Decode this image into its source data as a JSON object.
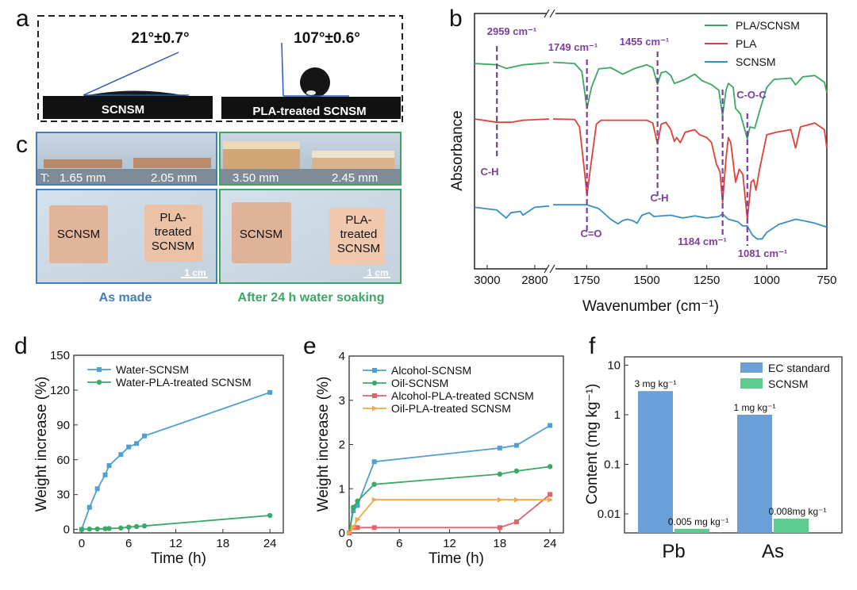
{
  "panel_labels": {
    "a": "a",
    "b": "b",
    "c": "c",
    "d": "d",
    "e": "e",
    "f": "f"
  },
  "panel_a": {
    "left_angle": "21°±0.7°",
    "right_angle": "107°±0.6°",
    "left_sample": "SCNSM",
    "right_sample": "PLA-treated SCNSM"
  },
  "panel_c": {
    "thickness_prefix": "T:",
    "thicknesses": [
      "1.65 mm",
      "2.05 mm",
      "3.50 mm",
      "2.45 mm"
    ],
    "untreated_label": "SCNSM",
    "treated_label": [
      "PLA-",
      "treated",
      "SCNSM"
    ],
    "scale_bar": "1 cm",
    "caption_left": "As made",
    "caption_right": "After 24 h water  soaking",
    "colors": {
      "as_made": "#3f7fbf",
      "soaked": "#3aa864"
    }
  },
  "chart_data": [
    {
      "panel": "b",
      "type": "line",
      "xlabel": "Wavenumber (cm⁻¹)",
      "ylabel": "Absorbance",
      "x_axis": "reversed, broken",
      "x_segments": [
        [
          3053,
          2740
        ],
        [
          1890,
          750
        ]
      ],
      "xticks": [
        "3000",
        "2800",
        "1750",
        "1500",
        "1250",
        "1000",
        "750"
      ],
      "y_units": "a.u. (no ticks)",
      "ylim": [
        0,
        100
      ],
      "legend": "top-right",
      "series": [
        {
          "name": "PLA/SCNSM",
          "color": "#3aa864",
          "points": [
            [
              3053,
              80.4
            ],
            [
              2959,
              79.9
            ],
            [
              2920,
              78.5
            ],
            [
              2850,
              79.9
            ],
            [
              2740,
              80.7
            ],
            [
              1890,
              80.9
            ],
            [
              1800,
              80.4
            ],
            [
              1770,
              77.3
            ],
            [
              1749,
              62.8
            ],
            [
              1730,
              71.1
            ],
            [
              1700,
              78.3
            ],
            [
              1650,
              78.8
            ],
            [
              1600,
              76.2
            ],
            [
              1550,
              78.5
            ],
            [
              1500,
              79.9
            ],
            [
              1475,
              78.8
            ],
            [
              1455,
              72.3
            ],
            [
              1440,
              76.8
            ],
            [
              1420,
              77.3
            ],
            [
              1400,
              75.7
            ],
            [
              1385,
              72.6
            ],
            [
              1370,
              73.1
            ],
            [
              1340,
              74.2
            ],
            [
              1300,
              76.2
            ],
            [
              1270,
              73.7
            ],
            [
              1230,
              72.1
            ],
            [
              1200,
              70.0
            ],
            [
              1184,
              60.0
            ],
            [
              1170,
              70.0
            ],
            [
              1160,
              72.6
            ],
            [
              1140,
              71.1
            ],
            [
              1130,
              62.8
            ],
            [
              1110,
              60.7
            ],
            [
              1081,
              50.9
            ],
            [
              1070,
              55.6
            ],
            [
              1050,
              55.1
            ],
            [
              1030,
              61.8
            ],
            [
              1000,
              71.1
            ],
            [
              970,
              74.2
            ],
            [
              900,
              74.7
            ],
            [
              880,
              72.1
            ],
            [
              850,
              75.2
            ],
            [
              800,
              75.7
            ],
            [
              760,
              73.1
            ],
            [
              750,
              69.0
            ]
          ]
        },
        {
          "name": "PLA",
          "color": "#e0403a",
          "points": [
            [
              3053,
              58.7
            ],
            [
              2959,
              57.4
            ],
            [
              2900,
              57.4
            ],
            [
              2850,
              58.2
            ],
            [
              2740,
              58.7
            ],
            [
              1890,
              58.7
            ],
            [
              1800,
              58.5
            ],
            [
              1780,
              55.6
            ],
            [
              1760,
              39.0
            ],
            [
              1749,
              28.7
            ],
            [
              1735,
              39.0
            ],
            [
              1710,
              56.6
            ],
            [
              1690,
              58.2
            ],
            [
              1500,
              58.2
            ],
            [
              1475,
              57.1
            ],
            [
              1455,
              48.9
            ],
            [
              1440,
              56.6
            ],
            [
              1420,
              57.4
            ],
            [
              1400,
              54.5
            ],
            [
              1385,
              49.9
            ],
            [
              1375,
              51.4
            ],
            [
              1360,
              49.4
            ],
            [
              1340,
              53.5
            ],
            [
              1300,
              54.5
            ],
            [
              1280,
              52.5
            ],
            [
              1250,
              51.4
            ],
            [
              1230,
              49.4
            ],
            [
              1210,
              41.1
            ],
            [
              1195,
              38.0
            ],
            [
              1184,
              26.1
            ],
            [
              1170,
              43.2
            ],
            [
              1160,
              51.4
            ],
            [
              1150,
              49.4
            ],
            [
              1130,
              33.9
            ],
            [
              1115,
              39.0
            ],
            [
              1100,
              37.0
            ],
            [
              1081,
              19.4
            ],
            [
              1065,
              33.9
            ],
            [
              1055,
              34.9
            ],
            [
              1045,
              30.8
            ],
            [
              1030,
              39.0
            ],
            [
              1000,
              52.5
            ],
            [
              960,
              53.5
            ],
            [
              900,
              54.5
            ],
            [
              880,
              47.3
            ],
            [
              860,
              55.6
            ],
            [
              800,
              57.1
            ],
            [
              760,
              54.5
            ],
            [
              750,
              47.3
            ]
          ]
        },
        {
          "name": "SCNSM",
          "color": "#3a8fbf",
          "points": [
            [
              3053,
              24.1
            ],
            [
              2959,
              23.0
            ],
            [
              2920,
              19.9
            ],
            [
              2900,
              22.0
            ],
            [
              2860,
              22.5
            ],
            [
              2850,
              21.0
            ],
            [
              2800,
              24.1
            ],
            [
              2740,
              24.6
            ],
            [
              1890,
              25.1
            ],
            [
              1750,
              25.1
            ],
            [
              1700,
              23.6
            ],
            [
              1650,
              19.4
            ],
            [
              1620,
              17.6
            ],
            [
              1600,
              18.9
            ],
            [
              1580,
              19.4
            ],
            [
              1560,
              18.9
            ],
            [
              1540,
              17.9
            ],
            [
              1520,
              21.0
            ],
            [
              1490,
              22.0
            ],
            [
              1470,
              20.5
            ],
            [
              1400,
              21.0
            ],
            [
              1350,
              19.9
            ],
            [
              1300,
              20.7
            ],
            [
              1250,
              19.9
            ],
            [
              1200,
              20.5
            ],
            [
              1184,
              21.5
            ],
            [
              1160,
              19.4
            ],
            [
              1120,
              18.4
            ],
            [
              1100,
              16.8
            ],
            [
              1081,
              16.8
            ],
            [
              1060,
              13.2
            ],
            [
              1040,
              11.7
            ],
            [
              1020,
              11.7
            ],
            [
              1000,
              14.3
            ],
            [
              950,
              17.4
            ],
            [
              880,
              19.4
            ],
            [
              850,
              18.9
            ],
            [
              800,
              17.9
            ],
            [
              750,
              16.3
            ]
          ]
        }
      ],
      "annotations": [
        {
          "wavenumber": 2959,
          "label": "2959 cm⁻¹",
          "assignment": "C-H"
        },
        {
          "wavenumber": 1749,
          "label": "1749 cm⁻¹",
          "assignment": "C=O"
        },
        {
          "wavenumber": 1455,
          "label": "1455 cm⁻¹",
          "assignment": "C-H"
        },
        {
          "wavenumber": 1184,
          "label": "1184 cm⁻¹",
          "assignment": ""
        },
        {
          "wavenumber": 1081,
          "label": "1081 cm⁻¹",
          "assignment": "C-O-C"
        }
      ],
      "annotation_color": "#7b3f9e"
    },
    {
      "panel": "d",
      "type": "line",
      "xlabel": "Time (h)",
      "ylabel": "Weight increase (%)",
      "xlim": [
        -1,
        25.7
      ],
      "ylim": [
        -3,
        150
      ],
      "xticks": [
        "0",
        "6",
        "12",
        "18",
        "24"
      ],
      "yticks": [
        "0",
        "30",
        "60",
        "90",
        "120",
        "150"
      ],
      "legend": "top-left",
      "x": [
        0,
        1,
        2,
        3,
        3.5,
        5,
        6,
        7,
        8,
        24
      ],
      "series": [
        {
          "name": "Water-SCNSM",
          "color": "#4f9fd1",
          "marker": "square",
          "values": [
            0,
            19,
            35,
            47,
            55,
            64.5,
            71,
            74,
            80.5,
            118
          ]
        },
        {
          "name": "Water-PLA-treated SCNSM",
          "color": "#3aa867",
          "marker": "circle",
          "values": [
            0,
            0.3,
            0.4,
            0.6,
            0.8,
            1.2,
            2,
            2.5,
            3,
            12
          ]
        }
      ]
    },
    {
      "panel": "e",
      "type": "line",
      "xlabel": "Time (h)",
      "ylabel": "Weight increase (%)",
      "xlim": [
        0,
        25.6
      ],
      "ylim": [
        0,
        4
      ],
      "xticks": [
        "0",
        "6",
        "12",
        "18",
        "24"
      ],
      "yticks": [
        "0",
        "1",
        "2",
        "3",
        "4"
      ],
      "legend": "top-left",
      "x": [
        0,
        0.5,
        1,
        3,
        18,
        20,
        24
      ],
      "series": [
        {
          "name": "Alcohol-SCNSM",
          "color": "#4f9fd1",
          "marker": "square",
          "values": [
            0,
            0.5,
            0.62,
            1.61,
            1.92,
            1.98,
            2.43
          ]
        },
        {
          "name": "Oil-SCNSM",
          "color": "#3aa867",
          "marker": "circle",
          "values": [
            0,
            0.58,
            0.72,
            1.1,
            1.33,
            1.4,
            1.5
          ]
        },
        {
          "name": "Alcohol-PLA-treated SCNSM",
          "color": "#e0636a",
          "marker": "square",
          "values": [
            0,
            0.12,
            0.12,
            0.12,
            0.12,
            0.25,
            0.87
          ]
        },
        {
          "name": "Oil-PLA-treated SCNSM",
          "color": "#f0a948",
          "marker": "triangle-right",
          "values": [
            0,
            0.12,
            0.3,
            0.75,
            0.75,
            0.75,
            0.75
          ]
        }
      ]
    },
    {
      "panel": "f",
      "type": "bar",
      "scale": "log",
      "ylabel": "Content  (mg kg⁻¹)",
      "ylim": [
        0.0042,
        14.5
      ],
      "yticks": [
        "0.01",
        "0.1",
        "1",
        "10"
      ],
      "categories": [
        "Pb",
        "As"
      ],
      "legend": "top-right",
      "series": [
        {
          "name": "EC standard",
          "color": "#6a9fd8",
          "values": [
            3,
            1
          ],
          "labels": [
            "3 mg kg⁻¹",
            "1 mg kg⁻¹"
          ]
        },
        {
          "name": "SCNSM",
          "color": "#5ccc8f",
          "values": [
            0.005,
            0.008
          ],
          "labels": [
            "0.005 mg kg⁻¹",
            "0.008mg kg⁻¹"
          ]
        }
      ]
    }
  ]
}
